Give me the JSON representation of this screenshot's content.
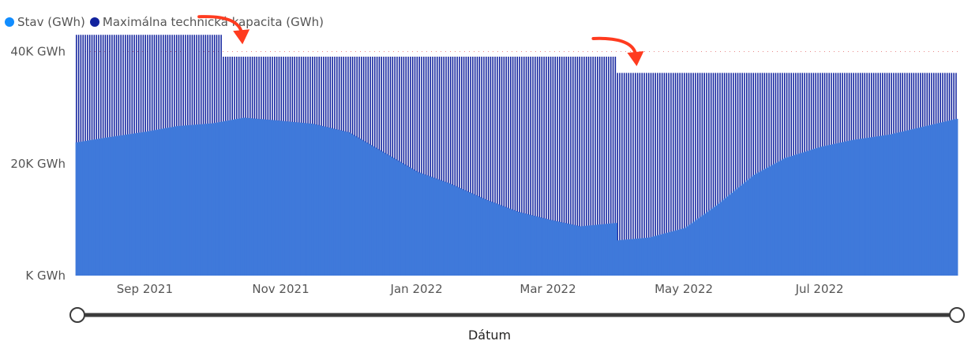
{
  "legend": [
    {
      "label": "Stav (GWh)",
      "color": "#118DFF"
    },
    {
      "label": "Maximálna technická kapacita (GWh)",
      "color": "#12239E"
    }
  ],
  "chart_data": {
    "type": "bar",
    "subtype": "overlapping-columns",
    "x_start": "2021-08-01",
    "x_end": "2022-08-31",
    "xlabel": "Dátum",
    "ylabel": "",
    "ylim": [
      0,
      45000
    ],
    "y_ticks": [
      {
        "value": 0,
        "label": "K GWh"
      },
      {
        "value": 20000,
        "label": "20K GWh"
      },
      {
        "value": 40000,
        "label": "40K GWh"
      }
    ],
    "x_ticks": [
      {
        "date": "2021-09-01",
        "label": "Sep 2021"
      },
      {
        "date": "2021-11-01",
        "label": "Nov 2021"
      },
      {
        "date": "2022-01-01",
        "label": "Jan 2022"
      },
      {
        "date": "2022-03-01",
        "label": "Mar 2022"
      },
      {
        "date": "2022-05-01",
        "label": "May 2022"
      },
      {
        "date": "2022-07-01",
        "label": "Jul 2022"
      }
    ],
    "reference_line": {
      "value": 40000,
      "style": "dotted"
    },
    "series": [
      {
        "name": "Maximálna technická kapacita (GWh)",
        "color": "#12239E",
        "steps": [
          {
            "from": "2021-08-01",
            "to": "2021-10-05",
            "value": 43000
          },
          {
            "from": "2021-10-06",
            "to": "2022-03-31",
            "value": 39100
          },
          {
            "from": "2022-04-01",
            "to": "2022-08-31",
            "value": 36200
          }
        ]
      },
      {
        "name": "Stav (GWh)",
        "color": "#118DFF",
        "points": [
          {
            "date": "2021-08-01",
            "value": 23800
          },
          {
            "date": "2021-08-15",
            "value": 24700
          },
          {
            "date": "2021-09-01",
            "value": 25700
          },
          {
            "date": "2021-09-15",
            "value": 26700
          },
          {
            "date": "2021-10-01",
            "value": 27200
          },
          {
            "date": "2021-10-15",
            "value": 28200
          },
          {
            "date": "2021-10-30",
            "value": 27700
          },
          {
            "date": "2021-11-15",
            "value": 27100
          },
          {
            "date": "2021-12-01",
            "value": 25600
          },
          {
            "date": "2021-12-15",
            "value": 22400
          },
          {
            "date": "2022-01-01",
            "value": 18500
          },
          {
            "date": "2022-01-15",
            "value": 16500
          },
          {
            "date": "2022-02-01",
            "value": 13500
          },
          {
            "date": "2022-02-15",
            "value": 11400
          },
          {
            "date": "2022-03-01",
            "value": 10000
          },
          {
            "date": "2022-03-15",
            "value": 8800
          },
          {
            "date": "2022-03-31",
            "value": 9400
          },
          {
            "date": "2022-04-01",
            "value": 6300
          },
          {
            "date": "2022-04-15",
            "value": 6800
          },
          {
            "date": "2022-05-01",
            "value": 8500
          },
          {
            "date": "2022-05-15",
            "value": 12500
          },
          {
            "date": "2022-06-01",
            "value": 18000
          },
          {
            "date": "2022-06-15",
            "value": 21000
          },
          {
            "date": "2022-07-01",
            "value": 23000
          },
          {
            "date": "2022-07-15",
            "value": 24200
          },
          {
            "date": "2022-08-01",
            "value": 25200
          },
          {
            "date": "2022-08-15",
            "value": 26500
          },
          {
            "date": "2022-08-31",
            "value": 28000
          }
        ]
      }
    ],
    "annotations": [
      {
        "type": "arrow",
        "color": "#FF3B1F",
        "points_to": "2021-10-06"
      },
      {
        "type": "arrow",
        "color": "#FF3B1F",
        "points_to": "2022-04-01"
      }
    ],
    "slider": {
      "axis": "Dátum",
      "from": "2021-08-01",
      "to": "2022-08-31"
    }
  }
}
